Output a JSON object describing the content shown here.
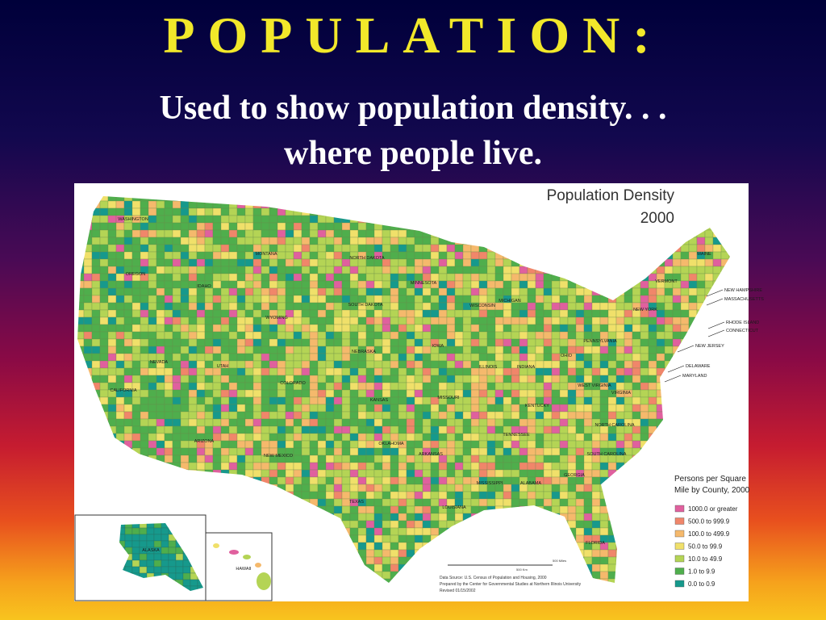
{
  "header": {
    "title": "POPULATION:",
    "subtitle_lines": [
      "Used to show population density. . .",
      "where people live."
    ]
  },
  "map": {
    "title_lines": [
      "Population Density",
      "2000"
    ],
    "legend": {
      "title_lines": [
        "Persons per Square",
        "Mile by County, 2000"
      ],
      "items": [
        {
          "label": "1000.0 or greater",
          "color": "#e0609e"
        },
        {
          "label": "500.0 to 999.9",
          "color": "#f0866a"
        },
        {
          "label": "100.0 to 499.9",
          "color": "#f5b96c"
        },
        {
          "label": "50.0 to 99.9",
          "color": "#f0e06a"
        },
        {
          "label": "10.0 to 49.9",
          "color": "#b4d455"
        },
        {
          "label": "1.0 to 9.9",
          "color": "#4fae4c"
        },
        {
          "label": "0.0 to 0.9",
          "color": "#16998c"
        }
      ]
    },
    "state_labels": [
      "WASHINGTON",
      "OREGON",
      "MONTANA",
      "IDAHO",
      "NORTH DAKOTA",
      "MINNESOTA",
      "SOUTH DAKOTA",
      "WYOMING",
      "WISCONSIN",
      "MICHIGAN",
      "NEW YORK",
      "VERMONT",
      "MAINE",
      "NEW HAMPSHIRE",
      "MASSACHUSETTS",
      "RHODE ISLAND",
      "CONNECTICUT",
      "NEW JERSEY",
      "DELAWARE",
      "MARYLAND",
      "PENNSYLVANIA",
      "IOWA",
      "NEBRASKA",
      "NEVADA",
      "UTAH",
      "COLORADO",
      "CALIFORNIA",
      "KANSAS",
      "ILLINOIS",
      "INDIANA",
      "OHIO",
      "WEST VIRGINIA",
      "VIRGINIA",
      "KENTUCKY",
      "MISSOURI",
      "TENNESSEE",
      "NORTH CAROLINA",
      "SOUTH CAROLINA",
      "OKLAHOMA",
      "ARIZONA",
      "NEW MEXICO",
      "TEXAS",
      "ARKANSAS",
      "MISSISSIPPI",
      "ALABAMA",
      "GEORGIA",
      "LOUISIANA",
      "FLORIDA",
      "ALASKA",
      "HAWAII"
    ],
    "scale_labels": [
      "500 Miles",
      "500 Km"
    ],
    "source_lines": [
      "Data Source: U.S. Census of Population and Housing, 2000",
      "Prepared by the Center for Governmental Studies at Northern Illinois University",
      "Revised 01/15/2002"
    ]
  }
}
